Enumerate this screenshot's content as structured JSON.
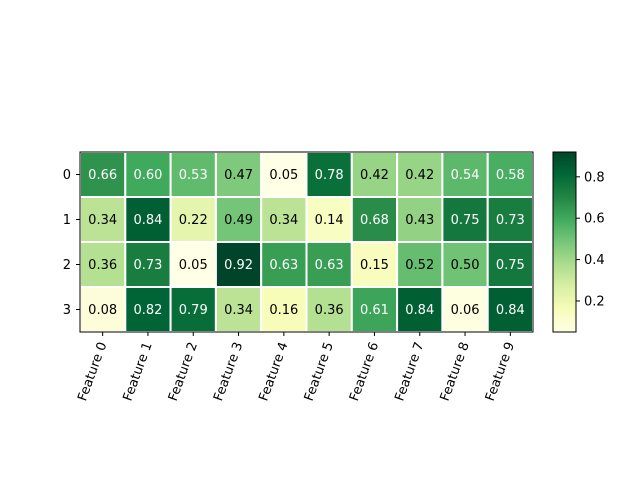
{
  "chart_data": {
    "type": "heatmap",
    "title": "",
    "xlabel": "",
    "ylabel": "",
    "x_categories": [
      "Feature 0",
      "Feature 1",
      "Feature 2",
      "Feature 3",
      "Feature 4",
      "Feature 5",
      "Feature 6",
      "Feature 7",
      "Feature 8",
      "Feature 9"
    ],
    "y_categories": [
      "0",
      "1",
      "2",
      "3"
    ],
    "values": [
      [
        0.66,
        0.6,
        0.53,
        0.47,
        0.05,
        0.78,
        0.42,
        0.42,
        0.54,
        0.58
      ],
      [
        0.34,
        0.84,
        0.22,
        0.49,
        0.34,
        0.14,
        0.68,
        0.43,
        0.75,
        0.73
      ],
      [
        0.36,
        0.73,
        0.05,
        0.92,
        0.63,
        0.63,
        0.15,
        0.52,
        0.5,
        0.75
      ],
      [
        0.08,
        0.82,
        0.79,
        0.34,
        0.16,
        0.36,
        0.61,
        0.84,
        0.06,
        0.84
      ]
    ],
    "value_range": [
      0.05,
      0.92
    ],
    "colormap": "YlGn",
    "colormap_stops": [
      "#ffffe5",
      "#f7fcb9",
      "#d9f0a3",
      "#addd8e",
      "#78c679",
      "#41ab5d",
      "#238443",
      "#006837",
      "#004529"
    ],
    "cell_separator_color": "#ffffff",
    "colorbar": {
      "ticks": [
        0.2,
        0.4,
        0.6,
        0.8
      ],
      "tick_labels": [
        "0.2",
        "0.4",
        "0.6",
        "0.8"
      ]
    },
    "x_tick_rotation_deg": 70,
    "text_light_color": "#ffffff",
    "text_dark_color": "#000000"
  }
}
